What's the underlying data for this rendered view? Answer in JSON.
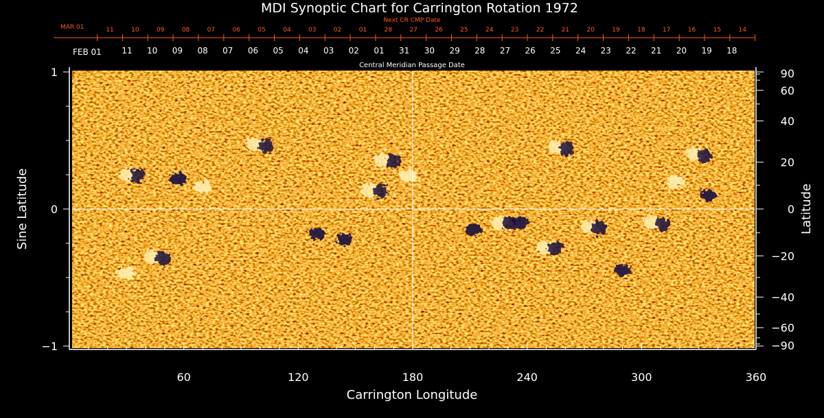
{
  "chart_data": {
    "type": "heatmap",
    "title": "MDI Synoptic Chart for Carrington Rotation 1972",
    "xlabel": "Carrington Longitude",
    "ylabel_left": "Sine Latitude",
    "ylabel_right": "Latitude",
    "xlim": [
      0,
      360
    ],
    "ylim": [
      -1,
      1
    ],
    "x_ticks": [
      "60",
      "120",
      "180",
      "240",
      "300",
      "360"
    ],
    "x_tick_values": [
      60,
      120,
      180,
      240,
      300,
      360
    ],
    "y_left_ticks": [
      "1",
      "0",
      "−1"
    ],
    "y_left_tick_values": [
      1,
      0,
      -1
    ],
    "y_right_ticks": [
      "90",
      "60",
      "40",
      "20",
      "0",
      "−20",
      "−40",
      "−60",
      "−90"
    ],
    "y_right_tick_values": [
      90,
      60,
      40,
      20,
      0,
      -20,
      -40,
      -60,
      -90
    ],
    "reference_lines": {
      "x": 180,
      "y": 0
    },
    "next_cr_label": "Next CR CMP Date",
    "cmp_label": "Central Meridian Passage Date",
    "next_cr_month": "MAR 01",
    "next_cr_dates": [
      "11",
      "10",
      "09",
      "08",
      "07",
      "06",
      "05",
      "04",
      "03",
      "02",
      "01",
      "28",
      "27",
      "26",
      "25",
      "24",
      "23",
      "22",
      "21",
      "20",
      "19",
      "18",
      "17",
      "16",
      "15",
      "14"
    ],
    "cmp_month": "FEB 01",
    "cmp_dates": [
      "11",
      "10",
      "09",
      "08",
      "07",
      "06",
      "05",
      "04",
      "03",
      "02",
      "01",
      "31",
      "30",
      "29",
      "28",
      "27",
      "26",
      "25",
      "24",
      "23",
      "22",
      "21",
      "20",
      "19",
      "18"
    ],
    "colormap": {
      "background": "#e04a10",
      "positive": "#fff0b0",
      "negative": "#1a1040",
      "reference_line": "#ffffff"
    },
    "active_regions": [
      {
        "lon": 100,
        "sinlat": 0.47,
        "polarity": "mixed"
      },
      {
        "lon": 57,
        "sinlat": 0.22,
        "polarity": "negative"
      },
      {
        "lon": 70,
        "sinlat": 0.16,
        "polarity": "positive"
      },
      {
        "lon": 33,
        "sinlat": 0.25,
        "polarity": "mixed"
      },
      {
        "lon": 167,
        "sinlat": 0.36,
        "polarity": "mixed"
      },
      {
        "lon": 178,
        "sinlat": 0.24,
        "polarity": "positive"
      },
      {
        "lon": 160,
        "sinlat": 0.14,
        "polarity": "mixed"
      },
      {
        "lon": 46,
        "sinlat": -0.35,
        "polarity": "mixed"
      },
      {
        "lon": 30,
        "sinlat": -0.47,
        "polarity": "positive"
      },
      {
        "lon": 228,
        "sinlat": -0.1,
        "polarity": "mixed"
      },
      {
        "lon": 236,
        "sinlat": -0.1,
        "polarity": "negative"
      },
      {
        "lon": 212,
        "sinlat": -0.15,
        "polarity": "negative"
      },
      {
        "lon": 275,
        "sinlat": -0.13,
        "polarity": "mixed"
      },
      {
        "lon": 252,
        "sinlat": -0.28,
        "polarity": "mixed"
      },
      {
        "lon": 290,
        "sinlat": -0.45,
        "polarity": "negative"
      },
      {
        "lon": 330,
        "sinlat": 0.4,
        "polarity": "mixed"
      },
      {
        "lon": 318,
        "sinlat": 0.2,
        "polarity": "positive"
      },
      {
        "lon": 335,
        "sinlat": 0.1,
        "polarity": "negative"
      },
      {
        "lon": 258,
        "sinlat": 0.45,
        "polarity": "mixed"
      },
      {
        "lon": 130,
        "sinlat": -0.18,
        "polarity": "negative"
      },
      {
        "lon": 144,
        "sinlat": -0.22,
        "polarity": "negative"
      },
      {
        "lon": 308,
        "sinlat": -0.1,
        "polarity": "mixed"
      }
    ]
  }
}
